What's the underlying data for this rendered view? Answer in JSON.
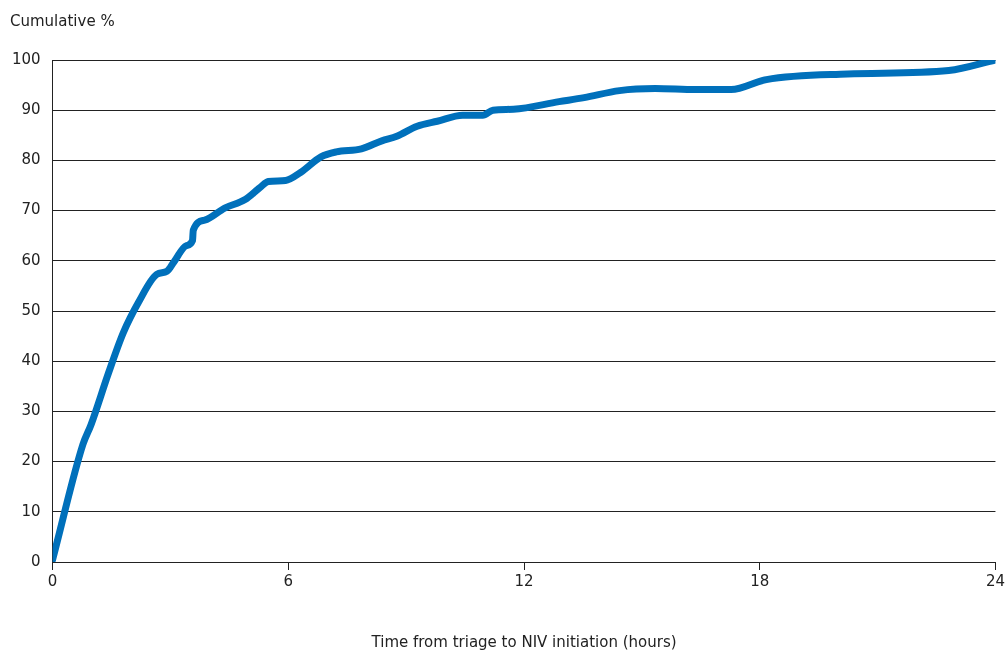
{
  "chart_data": {
    "type": "line",
    "xlabel": "Time from triage to NIV initiation (hours)",
    "ylabel": "Cumulative %",
    "xlim": [
      0,
      24
    ],
    "xticks": [
      0,
      6,
      12,
      18,
      24
    ],
    "ylim": [
      0,
      100
    ],
    "yticks": [
      0,
      10,
      20,
      30,
      40,
      50,
      60,
      70,
      80,
      90,
      100
    ],
    "grid": "y",
    "marker": "none",
    "line_style": "solid",
    "series": [
      {
        "color": "#0070bb",
        "x": [
          0,
          0.77,
          0.98,
          1.42,
          1.8,
          2.19,
          2.65,
          2.91,
          3.09,
          3.4,
          3.56,
          3.58,
          3.87,
          4.38,
          4.9,
          5.28,
          5.49,
          5.93,
          6.31,
          6.83,
          7.22,
          7.86,
          8.38,
          8.76,
          9.28,
          9.79,
          10.44,
          10.95,
          11.21,
          11.73,
          12.89,
          13.53,
          14.43,
          15.34,
          16.37,
          17.27,
          18.17,
          20.23,
          22.81,
          24
        ],
        "values": [
          0.5,
          23.4,
          27.4,
          37.6,
          45.7,
          51.8,
          57.3,
          57.9,
          59.8,
          63,
          64,
          66.1,
          68.1,
          70.5,
          72.2,
          74.6,
          75.8,
          76,
          77.6,
          80.7,
          81.7,
          82.3,
          83.9,
          84.8,
          86.8,
          87.8,
          89,
          89,
          90,
          90.2,
          91.7,
          92.5,
          93.9,
          94.3,
          94.1,
          94.1,
          96.1,
          97.2,
          97.9,
          100
        ]
      }
    ]
  }
}
